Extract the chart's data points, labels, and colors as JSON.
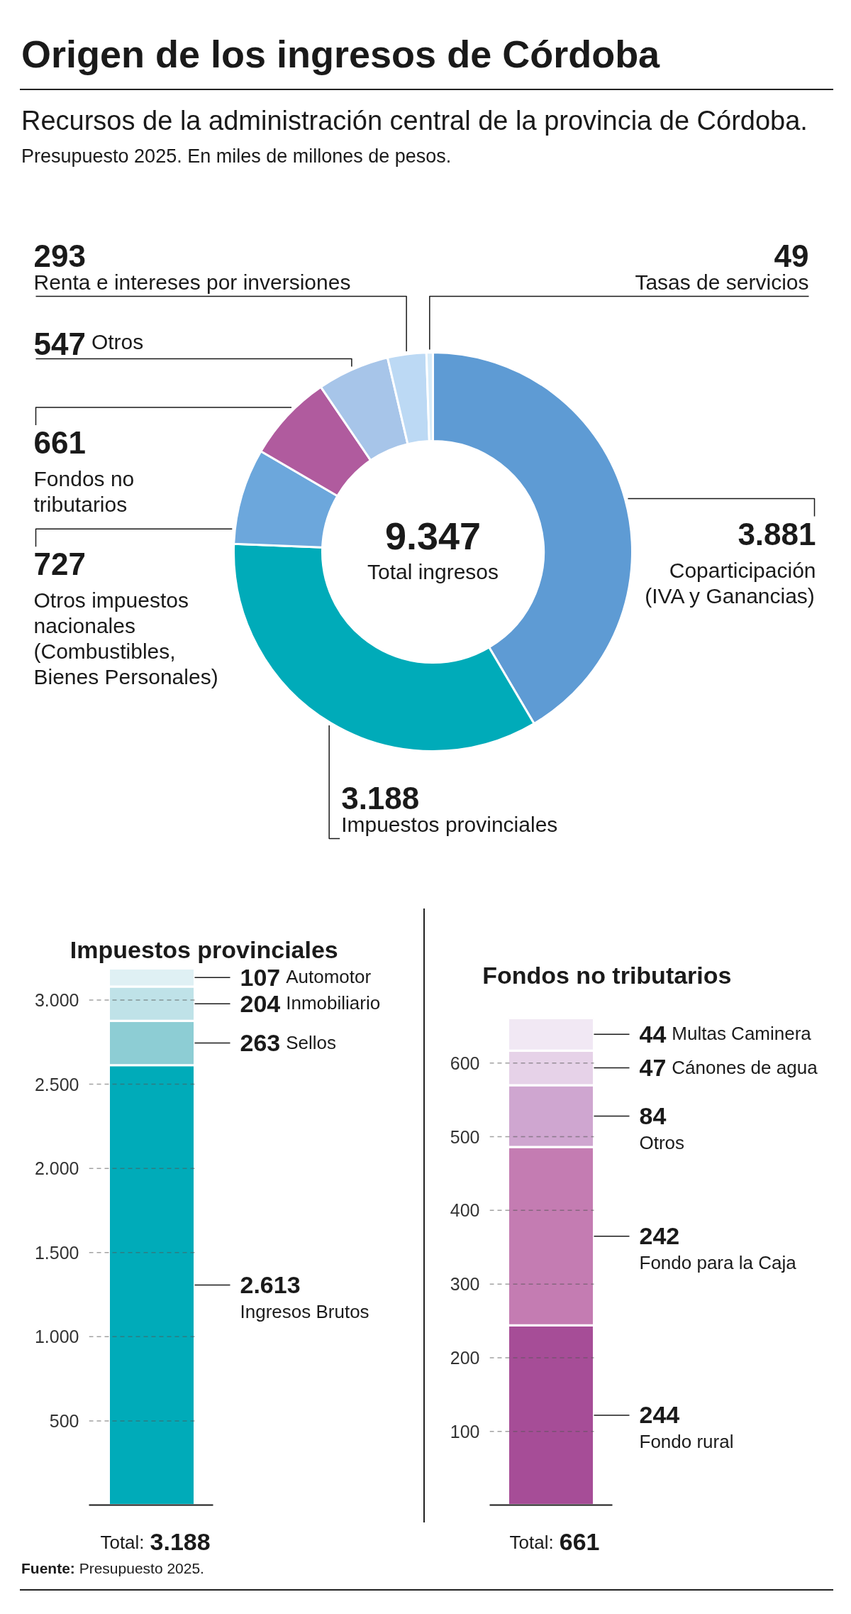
{
  "chart_data": [
    {
      "type": "donut",
      "title": "Origen de los ingresos de Córdoba",
      "subtitle": "Recursos de la administración central de la provincia de Córdoba.",
      "annotations": [
        "Presupuesto 2025. En miles de millones de pesos.",
        "9.347",
        "Total ingresos"
      ],
      "categories": [
        "Coparticipación (IVA y Ganancias)",
        "Impuestos provinciales",
        "Otros impuestos nacionales (Combustibles, Bienes Personales)",
        "Fondos no tributarios",
        "Otros",
        "Renta e intereses por inversiones",
        "Tasas de servicios"
      ],
      "values": [
        3881,
        3188,
        727,
        661,
        547,
        293,
        49
      ],
      "colors": [
        "#5e9bd4",
        "#00abb9",
        "#6ca7dc",
        "#b05b9e",
        "#a7c5e9",
        "#bcd9f4",
        "#d6ebf9"
      ],
      "value_labels": [
        "3.881",
        "3.188",
        "727",
        "661",
        "547",
        "293",
        "49"
      ]
    },
    {
      "type": "bar",
      "title": "Impuestos provinciales",
      "stacked": true,
      "categories": [
        null
      ],
      "series": [
        {
          "name": "Ingresos Brutos",
          "color": "#00abb9",
          "values": [
            2613
          ],
          "value_labels": [
            "2.613"
          ]
        },
        {
          "name": "Sellos",
          "color": "#8dcdd4",
          "values": [
            263
          ],
          "value_labels": [
            "263"
          ]
        },
        {
          "name": "Inmobiliario",
          "color": "#bfe2e8",
          "values": [
            204
          ],
          "value_labels": [
            "204"
          ]
        },
        {
          "name": "Automotor",
          "color": "#dff0f4",
          "values": [
            107
          ],
          "value_labels": [
            "107"
          ]
        }
      ],
      "ylim": [
        0,
        3200
      ],
      "yticks": [
        500,
        {
          "value": 1000,
          "label": "1.000"
        },
        {
          "value": 1500,
          "label": "1.500"
        },
        {
          "value": 2000,
          "label": "2.000"
        },
        {
          "value": 2500,
          "label": "2.500"
        },
        {
          "value": 3000,
          "label": "3.000"
        }
      ],
      "grid": "y",
      "totals": [
        "3.188"
      ],
      "annotations": [
        "Total:",
        "Fuente: Presupuesto 2025."
      ]
    },
    {
      "type": "bar",
      "title": "Fondos no tributarios",
      "stacked": true,
      "categories": [
        null
      ],
      "data_labels": true,
      "series": [
        {
          "name": "Fondo rural",
          "color": "#a64d97",
          "values": [
            244
          ]
        },
        {
          "name": "Fondo para la Caja",
          "color": "#c47cb2",
          "values": [
            242
          ]
        },
        {
          "name": "Otros",
          "color": "#cfa6d0",
          "values": [
            84
          ]
        },
        {
          "name": "Cánones de agua",
          "color": "#e6d2e8",
          "values": [
            47
          ]
        },
        {
          "name": "Multas Caminera",
          "color": "#f1e8f4",
          "values": [
            44
          ]
        }
      ],
      "ylim": [
        0,
        661
      ],
      "yticks": [
        100,
        200,
        300,
        400,
        500,
        600
      ],
      "grid": "y",
      "totals": [
        "661"
      ],
      "annotations": [
        "Total:"
      ]
    }
  ]
}
